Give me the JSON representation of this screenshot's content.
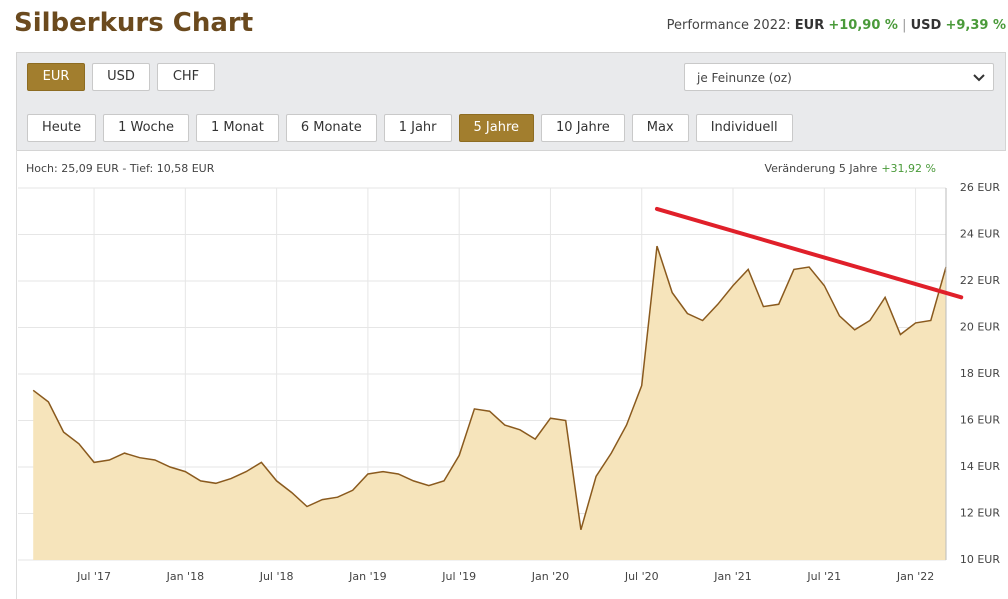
{
  "header": {
    "title": "Silberkurs Chart",
    "performance_label": "Performance 2022:",
    "currency1": "EUR",
    "change1": "+10,90 %",
    "separator": "|",
    "currency2": "USD",
    "change2": "+9,39 %"
  },
  "currency_buttons": {
    "labels": [
      "EUR",
      "USD",
      "CHF"
    ],
    "active_index": 0
  },
  "unit_select": "je Feinunze (oz)",
  "period_buttons": {
    "labels": [
      "Heute",
      "1 Woche",
      "1 Monat",
      "6 Monate",
      "1 Jahr",
      "5 Jahre",
      "10 Jahre",
      "Max",
      "Individuell"
    ],
    "active_index": 5
  },
  "chart_data": {
    "type": "area",
    "high_low": "Hoch: 25,09 EUR - Tief: 10,58 EUR",
    "change_label": "Veränderung 5 Jahre",
    "change_value": "+31,92 %",
    "x": [
      "2017-03",
      "2017-04",
      "2017-05",
      "2017-06",
      "2017-07",
      "2017-08",
      "2017-09",
      "2017-10",
      "2017-11",
      "2017-12",
      "2018-01",
      "2018-02",
      "2018-03",
      "2018-04",
      "2018-05",
      "2018-06",
      "2018-07",
      "2018-08",
      "2018-09",
      "2018-10",
      "2018-11",
      "2018-12",
      "2019-01",
      "2019-02",
      "2019-03",
      "2019-04",
      "2019-05",
      "2019-06",
      "2019-07",
      "2019-08",
      "2019-09",
      "2019-10",
      "2019-11",
      "2019-12",
      "2020-01",
      "2020-02",
      "2020-03",
      "2020-04",
      "2020-05",
      "2020-06",
      "2020-07",
      "2020-08",
      "2020-09",
      "2020-10",
      "2020-11",
      "2020-12",
      "2021-01",
      "2021-02",
      "2021-03",
      "2021-04",
      "2021-05",
      "2021-06",
      "2021-07",
      "2021-08",
      "2021-09",
      "2021-10",
      "2021-11",
      "2021-12",
      "2022-01",
      "2022-02",
      "2022-03"
    ],
    "values": [
      17.3,
      16.8,
      15.5,
      15.0,
      14.2,
      14.3,
      14.6,
      14.4,
      14.3,
      14.0,
      13.8,
      13.4,
      13.3,
      13.5,
      13.8,
      14.2,
      13.4,
      12.9,
      12.3,
      12.6,
      12.7,
      13.0,
      13.7,
      13.8,
      13.7,
      13.4,
      13.2,
      13.4,
      14.5,
      16.5,
      16.4,
      15.8,
      15.6,
      15.2,
      16.1,
      16.0,
      11.3,
      13.6,
      14.6,
      15.8,
      17.5,
      23.5,
      21.5,
      20.6,
      20.3,
      21.0,
      21.8,
      22.5,
      20.9,
      21.0,
      22.5,
      22.6,
      21.8,
      20.5,
      19.9,
      20.3,
      21.3,
      19.7,
      20.2,
      20.3,
      22.6
    ],
    "color": "#8a5a1e",
    "fill": "#f6e4bb",
    "trendline": {
      "x": [
        "2020-08",
        "2022-04"
      ],
      "values": [
        25.1,
        21.3
      ],
      "color": "#e0202a"
    },
    "xlim": [
      "2017-02",
      "2022-03"
    ],
    "xticks": [
      {
        "value": "2017-07",
        "label": "Jul '17"
      },
      {
        "value": "2018-01",
        "label": "Jan '18"
      },
      {
        "value": "2018-07",
        "label": "Jul '18"
      },
      {
        "value": "2019-01",
        "label": "Jan '19"
      },
      {
        "value": "2019-07",
        "label": "Jul '19"
      },
      {
        "value": "2020-01",
        "label": "Jan '20"
      },
      {
        "value": "2020-07",
        "label": "Jul '20"
      },
      {
        "value": "2021-01",
        "label": "Jan '21"
      },
      {
        "value": "2021-07",
        "label": "Jul '21"
      },
      {
        "value": "2022-01",
        "label": "Jan '22"
      }
    ],
    "ylim": [
      10,
      26
    ],
    "yticks": [
      {
        "value": 10,
        "label": "10 EUR"
      },
      {
        "value": 12,
        "label": "12 EUR"
      },
      {
        "value": 14,
        "label": "14 EUR"
      },
      {
        "value": 16,
        "label": "16 EUR"
      },
      {
        "value": 18,
        "label": "18 EUR"
      },
      {
        "value": 20,
        "label": "20 EUR"
      },
      {
        "value": 22,
        "label": "22 EUR"
      },
      {
        "value": 24,
        "label": "24 EUR"
      },
      {
        "value": 26,
        "label": "26 EUR"
      }
    ],
    "grid": true
  }
}
